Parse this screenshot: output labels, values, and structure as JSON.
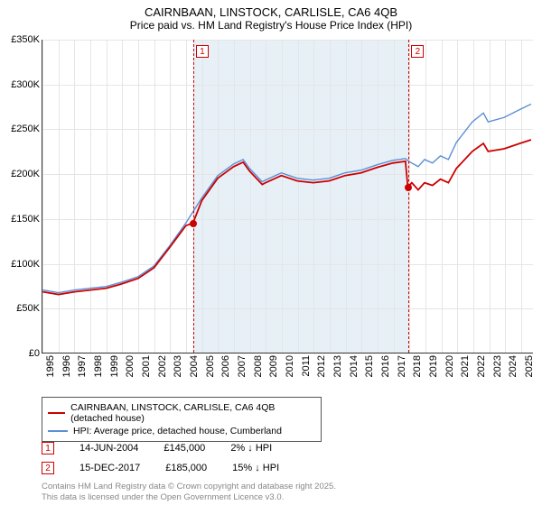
{
  "title": "CAIRNBAAN, LINSTOCK, CARLISLE, CA6 4QB",
  "subtitle": "Price paid vs. HM Land Registry's House Price Index (HPI)",
  "chart": {
    "type": "line",
    "x_start": 1995,
    "x_end": 2025.8,
    "ylim": [
      0,
      350000
    ],
    "ytick_step": 50000,
    "yticks": [
      "£0",
      "£50K",
      "£100K",
      "£150K",
      "£200K",
      "£250K",
      "£300K",
      "£350K"
    ],
    "xticks": [
      1995,
      1996,
      1997,
      1998,
      1999,
      2000,
      2001,
      2002,
      2003,
      2004,
      2005,
      2006,
      2007,
      2008,
      2009,
      2010,
      2011,
      2012,
      2013,
      2014,
      2015,
      2016,
      2017,
      2018,
      2019,
      2020,
      2021,
      2022,
      2023,
      2024,
      2025
    ],
    "shade": {
      "from": 2004.45,
      "to": 2017.95,
      "color": "#d6e3f0"
    },
    "markers": [
      {
        "id": "1",
        "x": 2004.45,
        "y": 145000
      },
      {
        "id": "2",
        "x": 2017.95,
        "y": 185000
      }
    ],
    "series": [
      {
        "name": "CAIRNBAAN, LINSTOCK, CARLISLE, CA6 4QB (detached house)",
        "color": "#cc0000",
        "width": 1.8,
        "points": [
          [
            1995,
            68000
          ],
          [
            1996,
            65000
          ],
          [
            1997,
            68000
          ],
          [
            1998,
            70000
          ],
          [
            1999,
            72000
          ],
          [
            2000,
            77000
          ],
          [
            2001,
            83000
          ],
          [
            2002,
            95000
          ],
          [
            2003,
            118000
          ],
          [
            2004,
            142000
          ],
          [
            2004.45,
            145000
          ],
          [
            2005,
            170000
          ],
          [
            2006,
            195000
          ],
          [
            2007,
            208000
          ],
          [
            2007.6,
            213000
          ],
          [
            2008,
            203000
          ],
          [
            2008.8,
            188000
          ],
          [
            2009,
            190000
          ],
          [
            2010,
            198000
          ],
          [
            2011,
            192000
          ],
          [
            2012,
            190000
          ],
          [
            2013,
            192000
          ],
          [
            2014,
            198000
          ],
          [
            2015,
            201000
          ],
          [
            2016,
            207000
          ],
          [
            2017,
            212000
          ],
          [
            2017.8,
            214000
          ],
          [
            2017.95,
            185000
          ],
          [
            2018.2,
            190000
          ],
          [
            2018.6,
            182000
          ],
          [
            2019,
            190000
          ],
          [
            2019.5,
            187000
          ],
          [
            2020,
            194000
          ],
          [
            2020.5,
            190000
          ],
          [
            2021,
            206000
          ],
          [
            2022,
            225000
          ],
          [
            2022.7,
            234000
          ],
          [
            2023,
            225000
          ],
          [
            2024,
            228000
          ],
          [
            2025,
            234000
          ],
          [
            2025.7,
            238000
          ]
        ]
      },
      {
        "name": "HPI: Average price, detached house, Cumberland",
        "color": "#5b8fd6",
        "width": 1.4,
        "points": [
          [
            1995,
            70000
          ],
          [
            1996,
            67000
          ],
          [
            1997,
            70000
          ],
          [
            1998,
            72000
          ],
          [
            1999,
            74000
          ],
          [
            2000,
            79000
          ],
          [
            2001,
            85000
          ],
          [
            2002,
            97000
          ],
          [
            2003,
            120000
          ],
          [
            2004,
            145000
          ],
          [
            2005,
            173000
          ],
          [
            2006,
            198000
          ],
          [
            2007,
            211000
          ],
          [
            2007.6,
            216000
          ],
          [
            2008,
            206000
          ],
          [
            2008.8,
            191000
          ],
          [
            2009,
            193000
          ],
          [
            2010,
            201000
          ],
          [
            2011,
            195000
          ],
          [
            2012,
            193000
          ],
          [
            2013,
            195000
          ],
          [
            2014,
            201000
          ],
          [
            2015,
            204000
          ],
          [
            2016,
            210000
          ],
          [
            2017,
            215000
          ],
          [
            2017.8,
            217000
          ],
          [
            2018,
            214000
          ],
          [
            2018.6,
            208000
          ],
          [
            2019,
            216000
          ],
          [
            2019.5,
            212000
          ],
          [
            2020,
            220000
          ],
          [
            2020.5,
            216000
          ],
          [
            2021,
            235000
          ],
          [
            2022,
            258000
          ],
          [
            2022.7,
            268000
          ],
          [
            2023,
            258000
          ],
          [
            2024,
            263000
          ],
          [
            2025,
            272000
          ],
          [
            2025.7,
            278000
          ]
        ]
      }
    ]
  },
  "annotations": [
    {
      "id": "1",
      "date": "14-JUN-2004",
      "price": "£145,000",
      "delta": "2% ↓ HPI"
    },
    {
      "id": "2",
      "date": "15-DEC-2017",
      "price": "£185,000",
      "delta": "15% ↓ HPI"
    }
  ],
  "footer1": "Contains HM Land Registry data © Crown copyright and database right 2025.",
  "footer2": "This data is licensed under the Open Government Licence v3.0."
}
